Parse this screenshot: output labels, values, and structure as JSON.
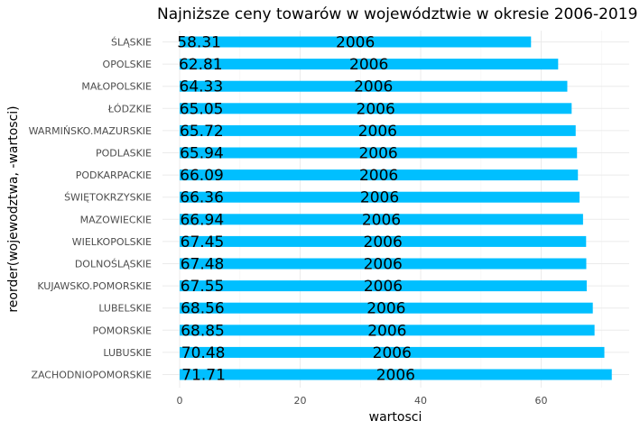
{
  "chart_data": {
    "type": "bar",
    "orientation": "horizontal",
    "title": "Najniższe ceny towarów w województwie w okresie 2006-2019",
    "xlabel": "wartosci",
    "ylabel": "reorder(wojewodztwa, -wartosci)",
    "xlim": [
      0,
      72
    ],
    "xticks": [
      0,
      20,
      40,
      60
    ],
    "bar_color": "#00BFFF",
    "grid": true,
    "categories": [
      "ŚLĄSKIE",
      "OPOLSKIE",
      "MAŁOPOLSKIE",
      "ŁÓDZKIE",
      "WARMIŃSKO.MAZURSKIE",
      "PODLASKIE",
      "PODKARPACKIE",
      "ŚWIĘTOKRZYSKIE",
      "MAZOWIECKIE",
      "WIELKOPOLSKIE",
      "DOLNOŚLĄSKIE",
      "KUJAWSKO.POMORSKIE",
      "LUBELSKIE",
      "POMORSKIE",
      "LUBUSKIE",
      "ZACHODNIOPOMORSKIE"
    ],
    "values": [
      58.31,
      62.81,
      64.33,
      65.05,
      65.72,
      65.94,
      66.09,
      66.36,
      66.94,
      67.45,
      67.48,
      67.55,
      68.56,
      68.85,
      70.48,
      71.71
    ],
    "value_labels": [
      "58.31",
      "62.81",
      "64.33",
      "65.05",
      "65.72",
      "65.94",
      "66.09",
      "66.36",
      "66.94",
      "67.45",
      "67.48",
      "67.55",
      "68.56",
      "68.85",
      "70.48",
      "71.71"
    ],
    "year_label": "2006"
  }
}
